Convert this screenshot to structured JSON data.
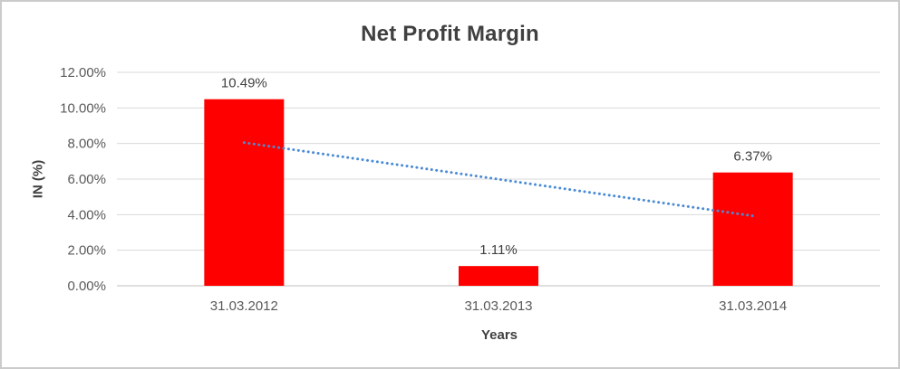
{
  "chart_data": {
    "type": "bar",
    "title": "Net Profit Margin",
    "xlabel": "Years",
    "ylabel": "IN (%)",
    "categories": [
      "31.03.2012",
      "31.03.2013",
      "31.03.2014"
    ],
    "series": [
      {
        "name": "Net Profit Margin",
        "values": [
          10.49,
          1.11,
          6.37
        ]
      }
    ],
    "data_labels": [
      "10.49%",
      "1.11%",
      "6.37%"
    ],
    "ylim": [
      0,
      12
    ],
    "ytick_step": 2,
    "ytick_labels": [
      "0.00%",
      "2.00%",
      "4.00%",
      "6.00%",
      "8.00%",
      "10.00%",
      "12.00%"
    ],
    "grid": "horizontal",
    "legend": "none",
    "bar_color": "#ff0000",
    "gridline_color": "#d9d9d9",
    "axis_line_color": "#bfbfbf",
    "trendline": {
      "type": "linear",
      "style": "dotted",
      "color": "#4a8bd5",
      "start_value": 8.05,
      "end_value": 3.93
    }
  }
}
